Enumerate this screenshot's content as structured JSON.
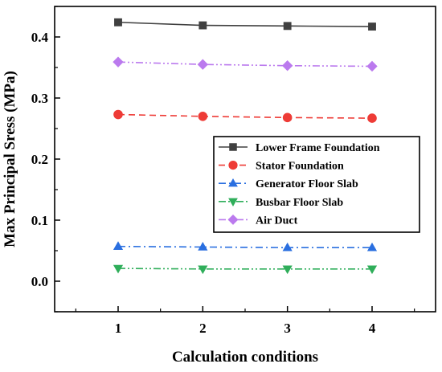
{
  "chart_data": {
    "type": "line",
    "xlabel": "Calculation conditions",
    "ylabel": "Max Principal Sress (MPa)",
    "x": [
      1,
      2,
      3,
      4
    ],
    "xlim": [
      0.25,
      4.75
    ],
    "ylim": [
      -0.05,
      0.45
    ],
    "x_ticks": [
      "1",
      "2",
      "3",
      "4"
    ],
    "y_ticks": [
      "0.0",
      "0.1",
      "0.2",
      "0.3",
      "0.4"
    ],
    "y_tick_values": [
      0.0,
      0.1,
      0.2,
      0.3,
      0.4
    ],
    "legend_position": "center-right",
    "grid": false,
    "series": [
      {
        "name": "Lower Frame Foundation",
        "values": [
          0.424,
          0.419,
          0.418,
          0.417
        ],
        "color": "#404040",
        "marker": "square",
        "line_style": "solid"
      },
      {
        "name": "Stator Foundation",
        "values": [
          0.273,
          0.27,
          0.268,
          0.267
        ],
        "color": "#ee3b36",
        "marker": "circle",
        "line_style": "dashed"
      },
      {
        "name": "Generator Floor Slab",
        "values": [
          0.057,
          0.056,
          0.055,
          0.055
        ],
        "color": "#2a6fe0",
        "marker": "triangle-up",
        "line_style": "dash-dot"
      },
      {
        "name": "Busbar Floor Slab",
        "values": [
          0.021,
          0.02,
          0.02,
          0.02
        ],
        "color": "#2fae5a",
        "marker": "triangle-down",
        "line_style": "dash-dot-dot"
      },
      {
        "name": "Air Duct",
        "values": [
          0.359,
          0.355,
          0.353,
          0.352
        ],
        "color": "#bb7aee",
        "marker": "diamond",
        "line_style": "dash-dot-dot"
      }
    ]
  }
}
